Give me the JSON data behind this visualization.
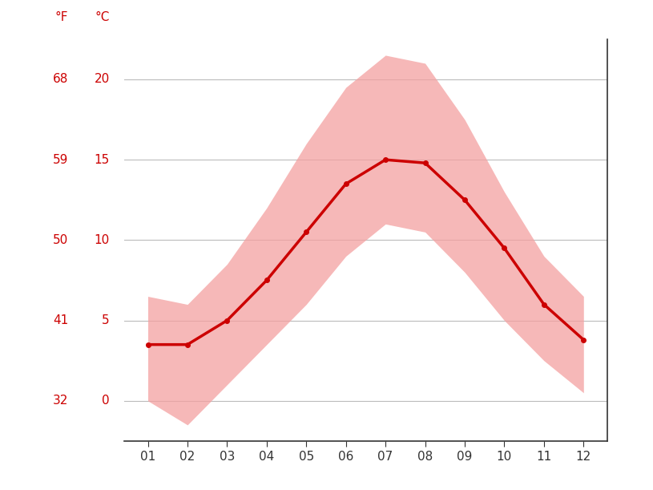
{
  "months": [
    1,
    2,
    3,
    4,
    5,
    6,
    7,
    8,
    9,
    10,
    11,
    12
  ],
  "mean_c": [
    3.5,
    3.5,
    5.0,
    7.5,
    10.5,
    13.5,
    15.0,
    14.8,
    12.5,
    9.5,
    6.0,
    3.8
  ],
  "max_c": [
    6.5,
    6.0,
    8.5,
    12.0,
    16.0,
    19.5,
    21.5,
    21.0,
    17.5,
    13.0,
    9.0,
    6.5
  ],
  "min_c": [
    0.0,
    -1.5,
    1.0,
    3.5,
    6.0,
    9.0,
    11.0,
    10.5,
    8.0,
    5.0,
    2.5,
    0.5
  ],
  "yticks_c": [
    0,
    5,
    10,
    15,
    20
  ],
  "yticks_f": [
    32,
    41,
    50,
    59,
    68
  ],
  "ylim_c": [
    -2.5,
    22.5
  ],
  "xlim": [
    0.4,
    12.6
  ],
  "line_color": "#cc0000",
  "fill_color": "#f4a0a0",
  "fill_alpha": 0.75,
  "background_color": "#ffffff",
  "grid_color": "#bbbbbb",
  "red_color": "#cc0000",
  "dark_color": "#333333",
  "label_fontsize": 11,
  "unit_fontsize": 11
}
